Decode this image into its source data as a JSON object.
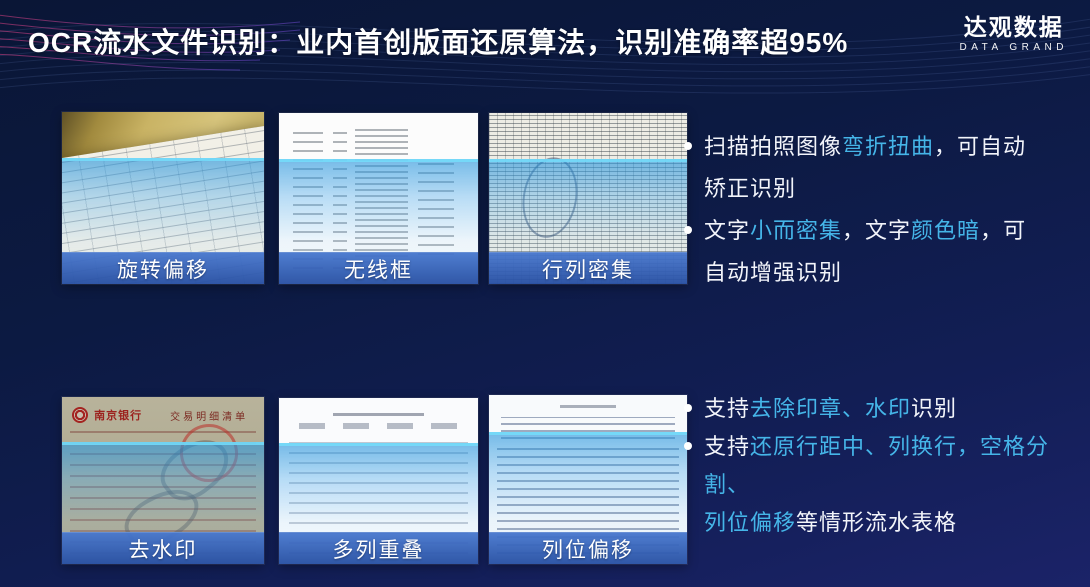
{
  "slide": {
    "title": "OCR流水文件识别：业内首创版面还原算法，识别准确率超95%",
    "logo": {
      "name": "达观数据",
      "subtitle": "DATA GRAND"
    }
  },
  "colors": {
    "background_top": "#0a1636",
    "background_bottom": "#1b2368",
    "highlight_cyan": "#45b5e8",
    "label_bar_blue": "#2d5cb4",
    "scan_band_cyan": "#6ed6f8",
    "title_white": "#ffffff"
  },
  "thumbnails": [
    {
      "id": "rotate-offset",
      "label": "旋转偏移",
      "image": "tilted-photographed-table-document"
    },
    {
      "id": "no-border",
      "label": "无线框",
      "image": "borderless-table-document"
    },
    {
      "id": "dense-grid",
      "label": "行列密集",
      "image": "dense-rows-columns-table-with-stamp"
    },
    {
      "id": "watermark",
      "label": "去水印",
      "image": "bank-statement-with-stamp-and-watermark",
      "doc_texts": [
        "南京银行",
        "交易明细清单"
      ]
    },
    {
      "id": "multi-column",
      "label": "多列重叠",
      "image": "multi-column-overlapping-statement"
    },
    {
      "id": "column-offset",
      "label": "列位偏移",
      "image": "ledger-with-offset-columns"
    }
  ],
  "bullets_top": [
    {
      "runs": [
        {
          "t": "扫描拍照图像"
        },
        {
          "t": "弯折扭曲",
          "h": true
        },
        {
          "t": "，可自动\n矫正识别"
        }
      ]
    },
    {
      "runs": [
        {
          "t": "文字"
        },
        {
          "t": "小而密集",
          "h": true
        },
        {
          "t": "，文字"
        },
        {
          "t": "颜色暗",
          "h": true
        },
        {
          "t": "，可\n自动增强识别"
        }
      ]
    }
  ],
  "bullets_bottom": [
    {
      "runs": [
        {
          "t": "支持"
        },
        {
          "t": "去除印章、水印",
          "h": true
        },
        {
          "t": "识别"
        }
      ]
    },
    {
      "runs": [
        {
          "t": "支持"
        },
        {
          "t": "还原行距中、列换行，空格分割、\n列位偏移",
          "h": true
        },
        {
          "t": "等情形流水表格"
        }
      ]
    }
  ]
}
